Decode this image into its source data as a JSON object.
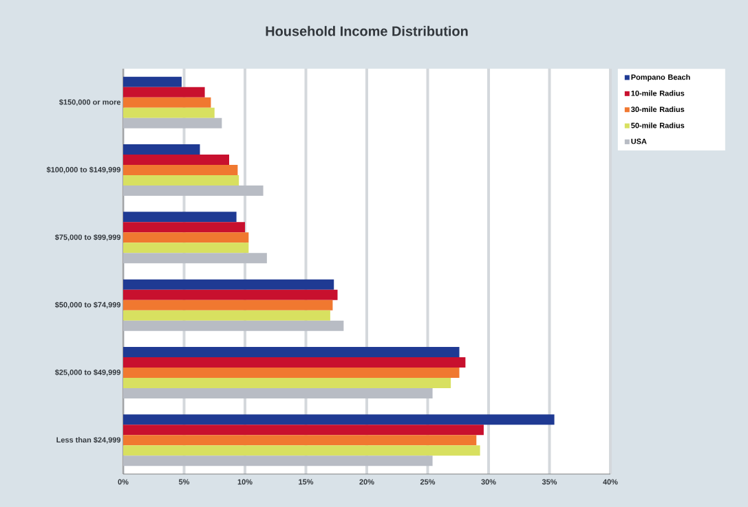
{
  "chart_data": {
    "type": "bar",
    "orientation": "horizontal",
    "title": "Household Income Distribution",
    "categories": [
      "$150,000 or more",
      "$100,000 to $149,999",
      "$75,000 to $99,999",
      "$50,000 to $74,999",
      "$25,000 to $49,999",
      "Less than $24,999"
    ],
    "series": [
      {
        "name": "Pompano Beach",
        "color": "#1f3a93",
        "values": [
          4.8,
          6.3,
          9.3,
          17.3,
          27.6,
          35.4
        ]
      },
      {
        "name": "10-mile Radius",
        "color": "#c8102e",
        "values": [
          6.7,
          8.7,
          10.0,
          17.6,
          28.1,
          29.6
        ]
      },
      {
        "name": "30-mile Radius",
        "color": "#f07830",
        "values": [
          7.2,
          9.4,
          10.3,
          17.2,
          27.6,
          29.0
        ]
      },
      {
        "name": "50-mile Radius",
        "color": "#d8e060",
        "values": [
          7.5,
          9.5,
          10.3,
          17.0,
          26.9,
          29.3
        ]
      },
      {
        "name": "USA",
        "color": "#b8bcc4",
        "values": [
          8.1,
          11.5,
          11.8,
          18.1,
          25.4,
          25.4
        ]
      }
    ],
    "xlim": [
      0,
      40
    ],
    "xticks": [
      {
        "value": 0,
        "label": "0%"
      },
      {
        "value": 5,
        "label": "5%"
      },
      {
        "value": 10,
        "label": "10%"
      },
      {
        "value": 15,
        "label": "15%"
      },
      {
        "value": 20,
        "label": "20%"
      },
      {
        "value": 25,
        "label": "25%"
      },
      {
        "value": 30,
        "label": "30%"
      },
      {
        "value": 35,
        "label": "35%"
      },
      {
        "value": 40,
        "label": "40%"
      }
    ],
    "grid": "x",
    "legend": "right"
  }
}
